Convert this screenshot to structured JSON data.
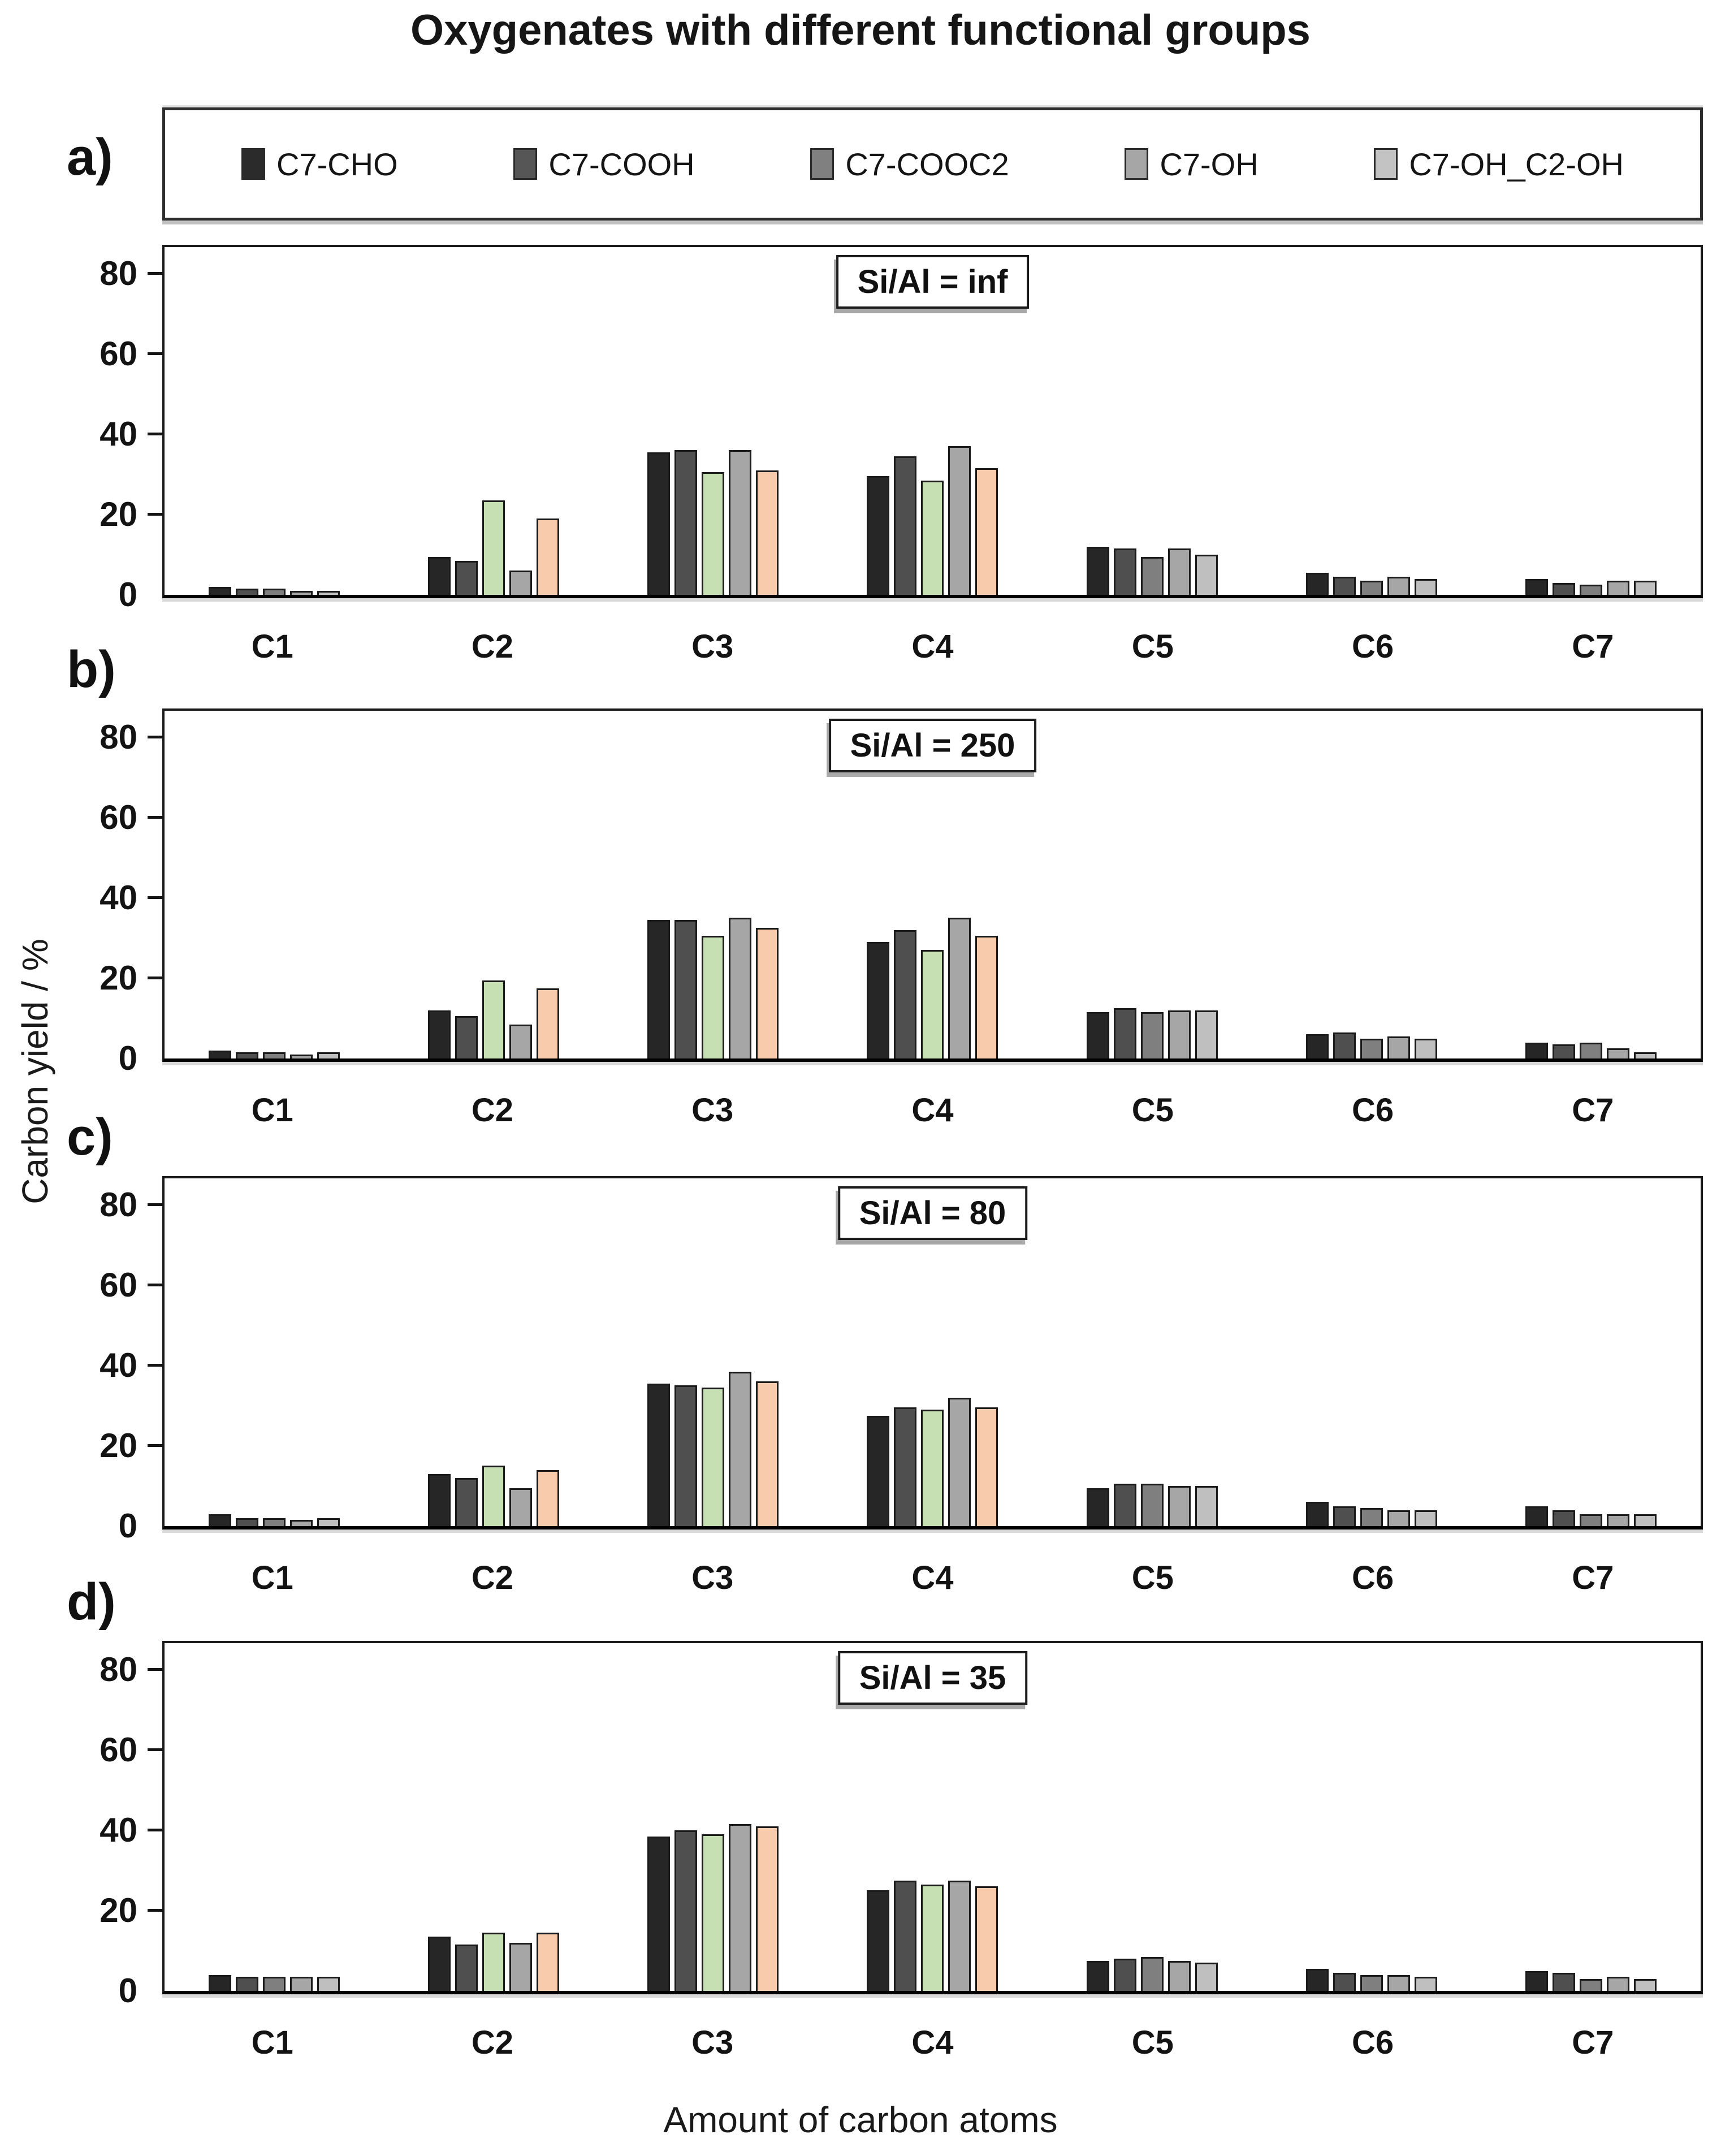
{
  "chart_data": {
    "type": "bar",
    "title": "Oxygenates with different functional groups",
    "ylabel": "Carbon yield / %",
    "xlabel": "Amount of carbon atoms",
    "ylim": [
      0,
      88
    ],
    "yticks": [
      0,
      20,
      40,
      60,
      80
    ],
    "grid": false,
    "legend_position": "top",
    "categories": [
      "C1",
      "C2",
      "C3",
      "C4",
      "C5",
      "C6",
      "C7"
    ],
    "series_names": [
      "C7-CHO",
      "C7-COOH",
      "C7-COOC2",
      "C7-OH",
      "C7-OH_C2-OH"
    ],
    "legend_swatch_colors": [
      "#2b2b2b",
      "#565656",
      "#808080",
      "#a6a6a6",
      "#c3c3c3"
    ],
    "series_colors": [
      "#262626",
      "#4f4f4f",
      "#7f7f7f",
      "#a6a6a6",
      "#bfbfbf"
    ],
    "highlight_categories": [
      "C2",
      "C3",
      "C4"
    ],
    "highlight_overrides": {
      "2": "#c6e0b4",
      "4": "#f8cbad"
    },
    "panels": [
      {
        "label": "a)",
        "annotation": "Si/Al = inf",
        "series": [
          {
            "name": "C7-CHO",
            "values": [
              2,
              9.5,
              35.5,
              29.5,
              12,
              5.5,
              4
            ]
          },
          {
            "name": "C7-COOH",
            "values": [
              1.5,
              8.5,
              36,
              34.5,
              11.5,
              4.5,
              3
            ]
          },
          {
            "name": "C7-COOC2",
            "values": [
              1.5,
              23.5,
              30.5,
              28.5,
              9.5,
              3.5,
              2.5
            ]
          },
          {
            "name": "C7-OH",
            "values": [
              1,
              6,
              36,
              37,
              11.5,
              4.5,
              3.5
            ]
          },
          {
            "name": "C7-OH_C2-OH",
            "values": [
              1,
              19,
              31,
              31.5,
              10,
              4,
              3.5
            ]
          }
        ]
      },
      {
        "label": "b)",
        "annotation": "Si/Al = 250",
        "series": [
          {
            "name": "C7-CHO",
            "values": [
              2,
              12,
              34.5,
              29,
              11.5,
              6,
              4
            ]
          },
          {
            "name": "C7-COOH",
            "values": [
              1.5,
              10.5,
              34.5,
              32,
              12.5,
              6.5,
              3.5
            ]
          },
          {
            "name": "C7-COOC2",
            "values": [
              1.5,
              19.5,
              30.5,
              27,
              11.5,
              5,
              4
            ]
          },
          {
            "name": "C7-OH",
            "values": [
              1,
              8.5,
              35,
              35,
              12,
              5.5,
              2.5
            ]
          },
          {
            "name": "C7-OH_C2-OH",
            "values": [
              1.5,
              17.5,
              32.5,
              30.5,
              12,
              5,
              1.5
            ]
          }
        ]
      },
      {
        "label": "c)",
        "annotation": "Si/Al = 80",
        "series": [
          {
            "name": "C7-CHO",
            "values": [
              3,
              13,
              35.5,
              27.5,
              9.5,
              6,
              5
            ]
          },
          {
            "name": "C7-COOH",
            "values": [
              2,
              12,
              35,
              29.5,
              10.5,
              5,
              4
            ]
          },
          {
            "name": "C7-COOC2",
            "values": [
              2,
              15,
              34.5,
              29,
              10.5,
              4.5,
              3
            ]
          },
          {
            "name": "C7-OH",
            "values": [
              1.5,
              9.5,
              38.5,
              32,
              10,
              4,
              3
            ]
          },
          {
            "name": "C7-OH_C2-OH",
            "values": [
              2,
              14,
              36,
              29.5,
              10,
              4,
              3
            ]
          }
        ]
      },
      {
        "label": "d)",
        "annotation": "Si/Al = 35",
        "series": [
          {
            "name": "C7-CHO",
            "values": [
              4,
              13.5,
              38.5,
              25,
              7.5,
              5.5,
              5
            ]
          },
          {
            "name": "C7-COOH",
            "values": [
              3.5,
              11.5,
              40,
              27.5,
              8,
              4.5,
              4.5
            ]
          },
          {
            "name": "C7-COOC2",
            "values": [
              3.5,
              14.5,
              39,
              26.5,
              8.5,
              4,
              3
            ]
          },
          {
            "name": "C7-OH",
            "values": [
              3.5,
              12,
              41.5,
              27.5,
              7.5,
              4,
              3.5
            ]
          },
          {
            "name": "C7-OH_C2-OH",
            "values": [
              3.5,
              14.5,
              41,
              26,
              7,
              3.5,
              3
            ]
          }
        ]
      }
    ]
  },
  "layout_text": {
    "panel_letters": [
      "a)",
      "b)",
      "c)",
      "d)"
    ]
  }
}
